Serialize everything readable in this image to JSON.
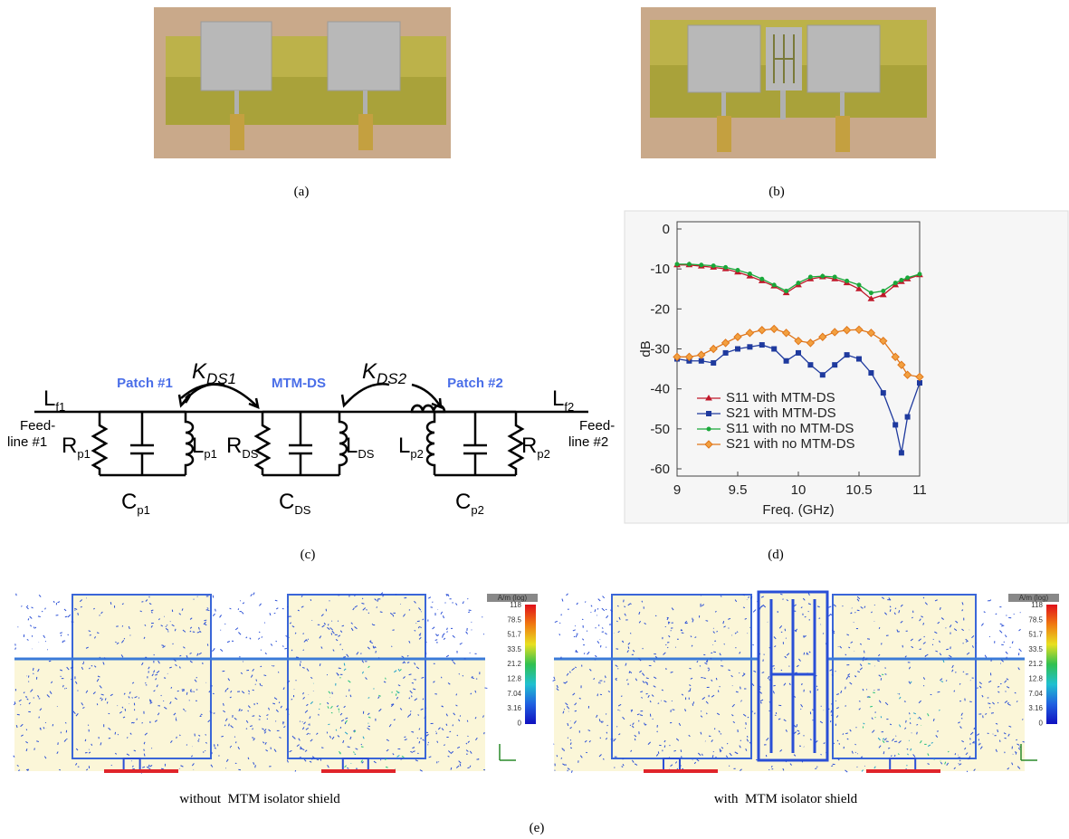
{
  "captions": [
    "(a)",
    "(b)",
    "(c)",
    "(d)",
    "(e)"
  ],
  "circuit": {
    "groups": [
      "Patch #1",
      "MTM-DS",
      "Patch #2"
    ],
    "couplings": [
      {
        "symbol": "K",
        "sub": "DS1"
      },
      {
        "symbol": "K",
        "sub": "DS2"
      }
    ],
    "feeds": [
      {
        "line1": "Feed-",
        "line2": "line #1"
      },
      {
        "line1": "Feed-",
        "line2": "line #2"
      }
    ],
    "components": [
      {
        "symbol": "L",
        "sub": "f1"
      },
      {
        "symbol": "R",
        "sub": "p1"
      },
      {
        "symbol": "L",
        "sub": "p1"
      },
      {
        "symbol": "C",
        "sub": "p1"
      },
      {
        "symbol": "R",
        "sub": "DS"
      },
      {
        "symbol": "L",
        "sub": "DS"
      },
      {
        "symbol": "C",
        "sub": "DS"
      },
      {
        "symbol": "L",
        "sub": "p2"
      },
      {
        "symbol": "R",
        "sub": "p2"
      },
      {
        "symbol": "C",
        "sub": "p2"
      },
      {
        "symbol": "L",
        "sub": "f2"
      }
    ]
  },
  "field_plots": [
    {
      "caption": "without  MTM isolator shield"
    },
    {
      "caption": "with  MTM isolator shield"
    }
  ],
  "colorbar": {
    "title": "A/m (log)",
    "labels": [
      "118",
      "78.5",
      "51.7",
      "33.5",
      "21.2",
      "12.8",
      "7.04",
      "3.16",
      "0"
    ]
  },
  "chart_data": {
    "type": "line",
    "xlabel": "Freq. (GHz)",
    "ylabel": "dB",
    "xlim": [
      9,
      11
    ],
    "ylim": [
      -60,
      0
    ],
    "xticks": [
      9,
      9.5,
      10,
      10.5,
      11
    ],
    "yticks": [
      0,
      -10,
      -20,
      -30,
      -40,
      -50,
      -60
    ],
    "x": [
      9,
      9.1,
      9.2,
      9.3,
      9.4,
      9.5,
      9.6,
      9.7,
      9.8,
      9.9,
      10,
      10.1,
      10.2,
      10.3,
      10.4,
      10.5,
      10.6,
      10.7,
      10.8,
      10.85,
      10.9,
      11
    ],
    "series": [
      {
        "name": "S11 with MTM-DS",
        "color": "#c0182a",
        "marker": "triangle",
        "values": [
          -9,
          -9,
          -9.3,
          -9.6,
          -10,
          -10.8,
          -11.8,
          -13,
          -14.3,
          -16,
          -14,
          -12.5,
          -12,
          -12.5,
          -13.5,
          -15,
          -17.5,
          -16.5,
          -14,
          -13.2,
          -12.5,
          -11.5
        ]
      },
      {
        "name": "S21 with MTM-DS",
        "color": "#1f3a9e",
        "marker": "square",
        "values": [
          -32.5,
          -33,
          -33,
          -33.5,
          -31,
          -30,
          -29.5,
          -29,
          -30,
          -33,
          -31,
          -34,
          -36.5,
          -34,
          -31.5,
          -32.5,
          -36,
          -41,
          -49,
          -56,
          -47,
          -38.5
        ]
      },
      {
        "name": "S11 with no MTM-DS",
        "color": "#1aa83a",
        "marker": "circle",
        "values": [
          -8.8,
          -8.8,
          -9,
          -9.2,
          -9.6,
          -10.3,
          -11.2,
          -12.5,
          -14,
          -15.5,
          -13.5,
          -12,
          -11.8,
          -12,
          -13,
          -14,
          -16,
          -15.5,
          -13.5,
          -12.8,
          -12.2,
          -11.3
        ]
      },
      {
        "name": "S21 with no MTM-DS",
        "color": "#e0761a",
        "marker": "diamond",
        "values": [
          -32,
          -32,
          -31.5,
          -30,
          -28.5,
          -27,
          -26,
          -25.3,
          -25,
          -26,
          -28,
          -28.5,
          -27,
          -25.8,
          -25.3,
          -25.2,
          -26,
          -28,
          -32,
          -34,
          -36.5,
          -37
        ]
      }
    ]
  }
}
